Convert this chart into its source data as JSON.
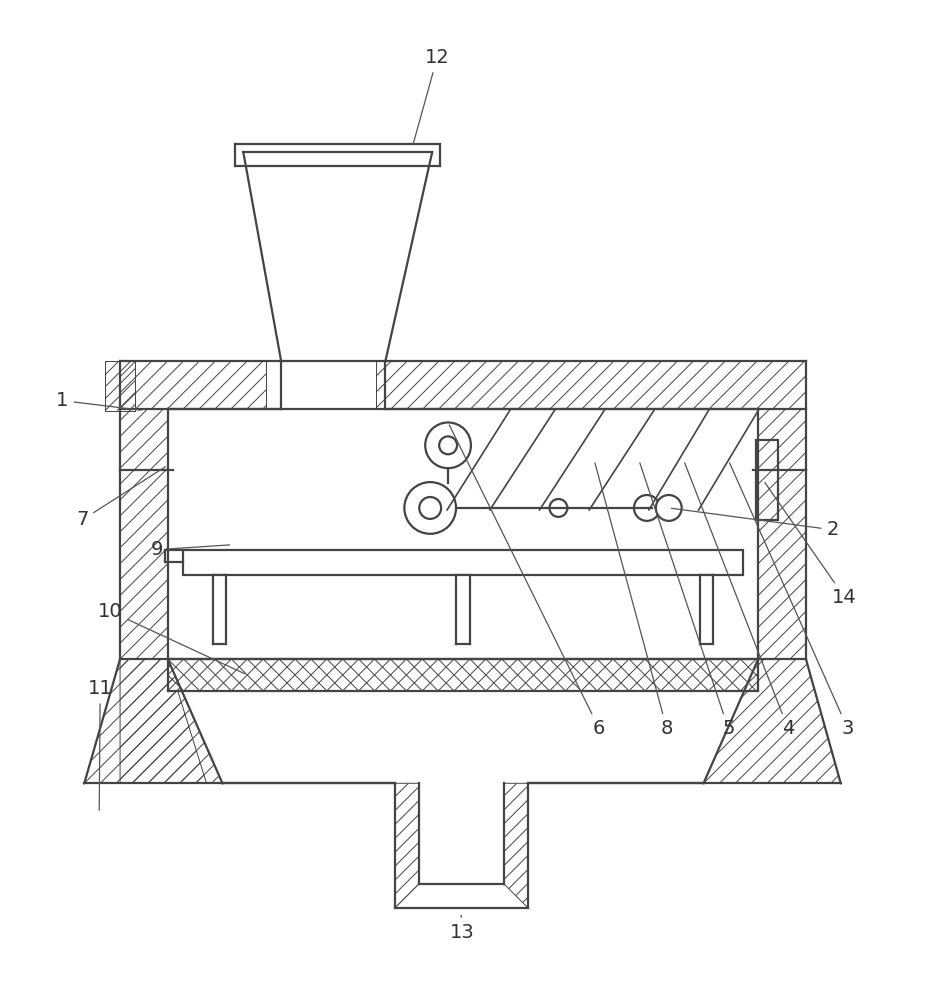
{
  "bg_color": "#ffffff",
  "lc": "#444444",
  "fig_width": 9.25,
  "fig_height": 10.0,
  "font_size": 14,
  "label_color": "#333333",
  "hatch_lw": 0.7,
  "main_lw": 1.6,
  "diag_line_color": "#555555"
}
